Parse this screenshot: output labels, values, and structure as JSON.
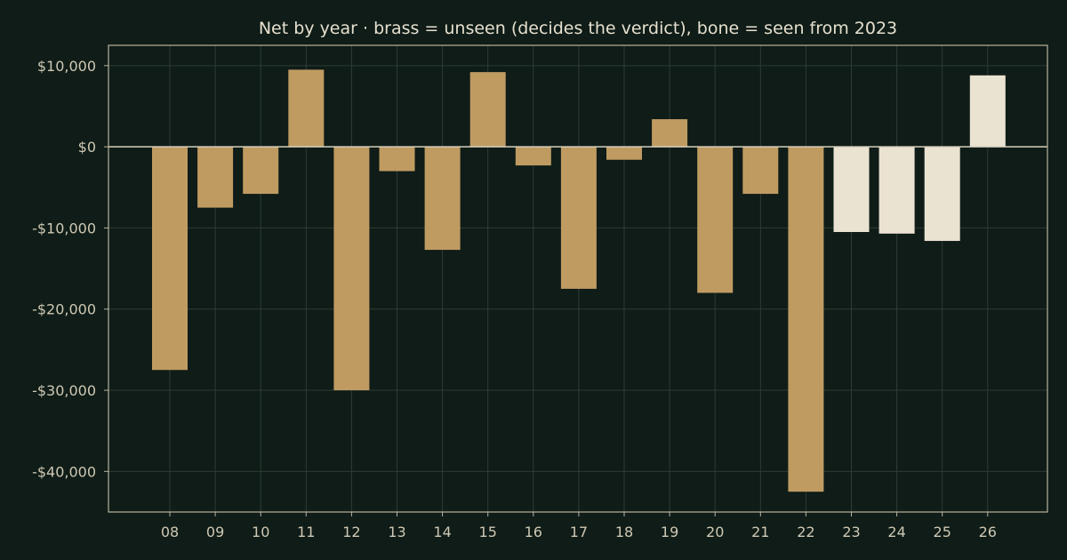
{
  "chart_data": {
    "type": "bar",
    "title": "Net by year  ·  brass = unseen (decides the verdict), bone = seen from 2023",
    "xlabel": "",
    "ylabel": "",
    "categories": [
      "08",
      "09",
      "10",
      "11",
      "12",
      "13",
      "14",
      "15",
      "16",
      "17",
      "18",
      "19",
      "20",
      "21",
      "22",
      "23",
      "24",
      "25",
      "26"
    ],
    "values": [
      -27500,
      -7500,
      -5800,
      9500,
      -30000,
      -3000,
      -12700,
      9200,
      -2300,
      -17500,
      -1600,
      3400,
      -18000,
      -5800,
      -42500,
      -10500,
      -10700,
      -11600,
      8800
    ],
    "series_groups": {
      "unseen": [
        "08",
        "09",
        "10",
        "11",
        "12",
        "13",
        "14",
        "15",
        "16",
        "17",
        "18",
        "19",
        "20",
        "21",
        "22"
      ],
      "seen": [
        "23",
        "24",
        "25",
        "26"
      ]
    },
    "ylim": [
      -45000,
      12500
    ],
    "yticks": [
      10000,
      0,
      -10000,
      -20000,
      -30000,
      -40000
    ],
    "ytick_labels": [
      "$10,000",
      "$0",
      "-$10,000",
      "-$20,000",
      "-$30,000",
      "-$40,000"
    ],
    "grid": true,
    "legend": "none",
    "colors": {
      "background": "#0f1c17",
      "unseen": "#bf9b62",
      "seen": "#ebe3d1",
      "axis": "#b9b39f",
      "grid": "#2f3d35",
      "zero_line": "#d6d0bd"
    }
  }
}
